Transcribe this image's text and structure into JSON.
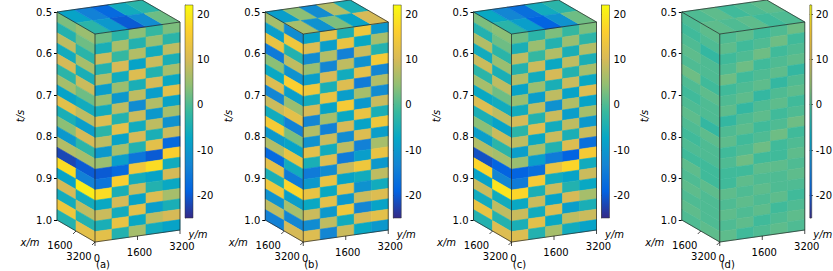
{
  "chart_data": {
    "type": "seismic_cube",
    "t_label": "t/s",
    "x_label": "x/m",
    "y_label": "y/m",
    "tlim": [
      0.5,
      1
    ],
    "tticks": [
      0.5,
      0.6,
      0.7,
      0.8,
      0.9,
      {
        "value": 1,
        "label": "1.0"
      }
    ],
    "xlim": [
      0,
      3200
    ],
    "xticks": [
      1600,
      3200
    ],
    "ylim": [
      0,
      3200
    ],
    "yticks": [
      0,
      1600,
      3200
    ],
    "colorbar": {
      "range": [
        -25,
        22
      ],
      "ticks": [
        -20,
        -10,
        0,
        10,
        20
      ]
    },
    "panels": [
      {
        "label": "(a)",
        "top_face": [
          [
            -8,
            -14,
            -18,
            -6,
            -3
          ],
          [
            -3,
            -10,
            -20,
            -12,
            2
          ]
        ],
        "front_face": [
          [
            3,
            5
          ],
          [
            -4,
            2
          ],
          [
            8,
            -3
          ],
          [
            -6,
            6
          ],
          [
            10,
            -5
          ],
          [
            -3,
            9
          ],
          [
            6,
            2
          ],
          [
            -8,
            -6
          ],
          [
            12,
            8
          ],
          [
            -5,
            -9
          ],
          [
            4,
            10
          ],
          [
            -10,
            -3
          ],
          [
            7,
            6
          ],
          [
            -22,
            -20
          ],
          [
            18,
            -14
          ],
          [
            -8,
            20
          ],
          [
            10,
            -6
          ],
          [
            -6,
            8
          ],
          [
            14,
            -4
          ],
          [
            -4,
            12
          ]
        ],
        "side_face": [
          [
            2,
            -3,
            4,
            -2,
            3
          ],
          [
            -5,
            6,
            -4,
            5,
            -3
          ],
          [
            9,
            -2,
            7,
            -6,
            8
          ],
          [
            -4,
            10,
            -8,
            9,
            -5
          ],
          [
            7,
            -6,
            11,
            -4,
            6
          ],
          [
            -9,
            5,
            -5,
            10,
            -7
          ],
          [
            5,
            -10,
            8,
            -9,
            12
          ],
          [
            -6,
            8,
            -12,
            7,
            -8
          ],
          [
            11,
            -4,
            9,
            -10,
            6
          ],
          [
            -3,
            12,
            -6,
            8,
            -11
          ],
          [
            8,
            -8,
            10,
            -5,
            9
          ],
          [
            -10,
            6,
            -4,
            12,
            -18
          ],
          [
            5,
            -9,
            -16,
            -20,
            16
          ],
          [
            -20,
            -18,
            14,
            18,
            -6
          ],
          [
            -16,
            16,
            -6,
            -8,
            10
          ],
          [
            18,
            -5,
            9,
            -4,
            -7
          ],
          [
            -7,
            10,
            -8,
            11,
            6
          ],
          [
            9,
            -6,
            12,
            -9,
            -5
          ],
          [
            -5,
            13,
            -7,
            8,
            10
          ],
          [
            12,
            -4,
            6,
            -6,
            -8
          ]
        ]
      },
      {
        "label": "(b)",
        "top_face": [
          [
            -9,
            4,
            -12,
            7,
            -5
          ],
          [
            6,
            -11,
            3,
            -8,
            10
          ]
        ],
        "front_face": [
          [
            6,
            -12
          ],
          [
            -9,
            14
          ],
          [
            13,
            -4
          ],
          [
            -15,
            8
          ],
          [
            4,
            -11
          ],
          [
            -7,
            16
          ],
          [
            11,
            -9
          ],
          [
            -13,
            5
          ],
          [
            9,
            12
          ],
          [
            -6,
            -14
          ],
          [
            15,
            3
          ],
          [
            -10,
            -8
          ],
          [
            7,
            13
          ],
          [
            -18,
            -6
          ],
          [
            12,
            -15
          ],
          [
            -5,
            17
          ],
          [
            14,
            -9
          ],
          [
            -11,
            6
          ],
          [
            8,
            -13
          ],
          [
            -14,
            10
          ]
        ],
        "side_face": [
          [
            -8,
            12,
            -5,
            14,
            -10
          ],
          [
            11,
            -9,
            13,
            -7,
            6
          ],
          [
            -12,
            7,
            -14,
            9,
            -4
          ],
          [
            5,
            -13,
            8,
            -11,
            15
          ],
          [
            -9,
            10,
            -6,
            12,
            -13
          ],
          [
            14,
            -5,
            11,
            -15,
            7
          ],
          [
            -6,
            13,
            -9,
            6,
            -12
          ],
          [
            10,
            -8,
            15,
            -10,
            9
          ],
          [
            -13,
            6,
            -7,
            13,
            -5
          ],
          [
            7,
            -14,
            10,
            -8,
            14
          ],
          [
            -11,
            9,
            -12,
            11,
            -9
          ],
          [
            12,
            -6,
            8,
            -14,
            6
          ],
          [
            -5,
            11,
            -15,
            -9,
            13
          ],
          [
            -15,
            -12,
            9,
            14,
            -10
          ],
          [
            -10,
            13,
            -8,
            -6,
            8
          ],
          [
            13,
            -7,
            12,
            -11,
            -6
          ],
          [
            -7,
            12,
            -10,
            9,
            11
          ],
          [
            9,
            -10,
            14,
            -13,
            -8
          ],
          [
            -12,
            8,
            -6,
            10,
            12
          ],
          [
            11,
            -13,
            9,
            -7,
            -10
          ]
        ]
      },
      {
        "label": "(c)",
        "top_face": [
          [
            -7,
            -13,
            -17,
            -6,
            -3
          ],
          [
            -3,
            -9,
            -19,
            -11,
            2
          ]
        ],
        "front_face": [
          [
            3,
            4
          ],
          [
            -4,
            2
          ],
          [
            7,
            -3
          ],
          [
            -6,
            5
          ],
          [
            9,
            -5
          ],
          [
            -3,
            8
          ],
          [
            6,
            2
          ],
          [
            -7,
            -6
          ],
          [
            11,
            8
          ],
          [
            -5,
            -8
          ],
          [
            4,
            9
          ],
          [
            -9,
            -3
          ],
          [
            7,
            6
          ],
          [
            -21,
            -19
          ],
          [
            17,
            -13
          ],
          [
            -8,
            19
          ],
          [
            9,
            -6
          ],
          [
            -6,
            8
          ],
          [
            13,
            -4
          ],
          [
            -4,
            11
          ]
        ],
        "side_face": [
          [
            2,
            -3,
            3,
            -2,
            3
          ],
          [
            -5,
            5,
            -4,
            5,
            -3
          ],
          [
            8,
            -2,
            7,
            -5,
            7
          ],
          [
            -4,
            9,
            -7,
            8,
            -5
          ],
          [
            7,
            -6,
            10,
            -4,
            6
          ],
          [
            -8,
            5,
            -5,
            9,
            -7
          ],
          [
            5,
            -9,
            8,
            -8,
            11
          ],
          [
            -6,
            8,
            -11,
            7,
            -8
          ],
          [
            10,
            -4,
            9,
            -9,
            6
          ],
          [
            -3,
            11,
            -6,
            8,
            -10
          ],
          [
            8,
            -7,
            9,
            -5,
            9
          ],
          [
            -9,
            6,
            -4,
            11,
            -17
          ],
          [
            5,
            -9,
            -15,
            -19,
            15
          ],
          [
            -19,
            -17,
            13,
            17,
            -6
          ],
          [
            -15,
            15,
            -6,
            -8,
            9
          ],
          [
            17,
            -5,
            9,
            -4,
            -7
          ],
          [
            -7,
            9,
            -8,
            10,
            6
          ],
          [
            9,
            -6,
            11,
            -9,
            -5
          ],
          [
            -5,
            12,
            -7,
            8,
            9
          ],
          [
            11,
            -4,
            6,
            -6,
            -8
          ]
        ]
      },
      {
        "label": "(d)",
        "top_face": [
          [
            0,
            1,
            -1,
            0,
            1
          ],
          [
            1,
            0,
            1,
            -1,
            0
          ]
        ],
        "front_face": [
          [
            0,
            1
          ],
          [
            -1,
            0
          ],
          [
            0,
            -2
          ],
          [
            1,
            0
          ],
          [
            0,
            0
          ],
          [
            2,
            -1
          ],
          [
            0,
            1
          ],
          [
            -1,
            0
          ],
          [
            0,
            0
          ],
          [
            1,
            -2
          ],
          [
            0,
            1
          ],
          [
            -1,
            0
          ],
          [
            0,
            0
          ],
          [
            -1,
            -1
          ],
          [
            1,
            -1
          ],
          [
            0,
            1
          ],
          [
            1,
            0
          ],
          [
            0,
            0
          ],
          [
            1,
            0
          ],
          [
            0,
            1
          ]
        ],
        "side_face": [
          [
            0,
            1,
            -1,
            0,
            2
          ],
          [
            1,
            -1,
            0,
            2,
            -1
          ],
          [
            -1,
            0,
            2,
            -1,
            0
          ],
          [
            0,
            2,
            -1,
            0,
            1
          ],
          [
            2,
            -1,
            0,
            1,
            -2
          ],
          [
            -1,
            0,
            1,
            -2,
            0
          ],
          [
            0,
            1,
            -2,
            0,
            1
          ],
          [
            1,
            -2,
            0,
            1,
            -1
          ],
          [
            -2,
            0,
            1,
            -1,
            0
          ],
          [
            0,
            1,
            -1,
            0,
            2
          ],
          [
            1,
            -1,
            0,
            2,
            -1
          ],
          [
            -1,
            0,
            2,
            -1,
            0
          ],
          [
            0,
            2,
            -1,
            -1,
            1
          ],
          [
            -1,
            -1,
            1,
            1,
            0
          ],
          [
            -1,
            1,
            0,
            0,
            1
          ],
          [
            1,
            0,
            1,
            0,
            0
          ],
          [
            0,
            1,
            0,
            1,
            -1
          ],
          [
            1,
            0,
            1,
            -1,
            0
          ],
          [
            0,
            1,
            -1,
            0,
            1
          ],
          [
            1,
            -1,
            0,
            1,
            0
          ]
        ]
      }
    ]
  }
}
